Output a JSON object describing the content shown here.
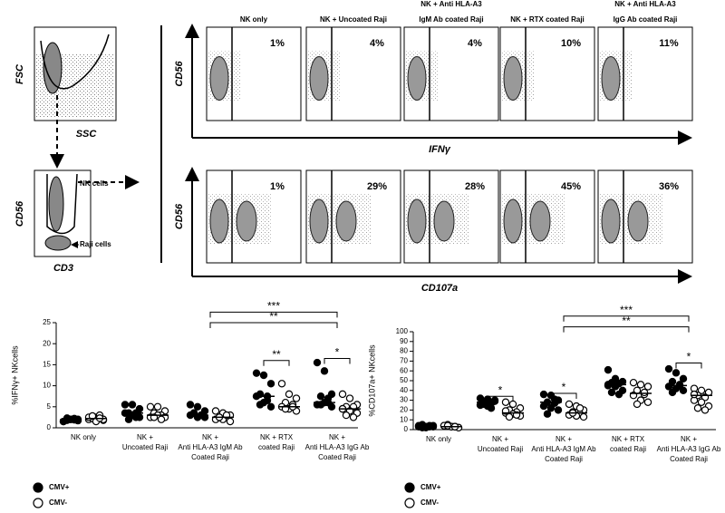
{
  "gating": {
    "top_y": "FSC",
    "top_x": "SSC",
    "bottom_y": "CD56",
    "bottom_x": "CD3",
    "gate_nk": "NK cells",
    "gate_raji": "Raji cells"
  },
  "flow_rows": [
    {
      "y_label": "CD56",
      "x_label": "IFNγ",
      "panels": [
        {
          "title": [
            "NK only"
          ],
          "percent": "1%"
        },
        {
          "title": [
            "NK + Uncoated Raji"
          ],
          "percent": "4%"
        },
        {
          "title": [
            "NK + Anti HLA-A3",
            "IgM Ab coated Raji"
          ],
          "percent": "4%"
        },
        {
          "title": [
            "NK + RTX coated Raji"
          ],
          "percent": "10%"
        },
        {
          "title": [
            "NK + Anti HLA-A3",
            "IgG Ab coated Raji"
          ],
          "percent": "11%"
        }
      ]
    },
    {
      "y_label": "CD56",
      "x_label": "CD107a",
      "panels": [
        {
          "percent": "1%"
        },
        {
          "percent": "29%"
        },
        {
          "percent": "28%"
        },
        {
          "percent": "45%"
        },
        {
          "percent": "36%"
        }
      ]
    }
  ],
  "chart_data": [
    {
      "type": "dot",
      "y_label": "%IFNγ+ NKcells",
      "ylim": [
        0,
        25
      ],
      "yticks": [
        0,
        5,
        10,
        15,
        20,
        25
      ],
      "categories": [
        [
          "NK only"
        ],
        [
          "NK +",
          "Uncoated Raji"
        ],
        [
          "NK +",
          "Anti HLA-A3 IgM Ab",
          "Coated Raji"
        ],
        [
          "NK + RTX",
          "coated Raji"
        ],
        [
          "NK +",
          "Anti HLA-A3 IgG Ab",
          "Coated Raji"
        ]
      ],
      "series": [
        {
          "name": "CMV+",
          "color": "#000000",
          "marker": "filled",
          "values": [
            [
              1.5,
              2,
              2,
              1.8,
              2.2,
              1.5,
              2,
              1.7,
              2.3,
              1.9
            ],
            [
              5.5,
              5.5,
              4.5,
              3.5,
              3.5,
              3.5,
              3,
              2.5,
              2,
              2.5
            ],
            [
              5.5,
              5,
              4,
              3.5,
              3,
              3,
              2.5,
              2.5,
              3.5,
              3
            ],
            [
              13,
              12.5,
              10.5,
              8,
              7.5,
              7.5,
              6,
              5,
              5.5,
              6.5
            ],
            [
              15.5,
              13.5,
              8,
              7.5,
              6,
              5.5,
              6,
              5,
              5.5,
              7
            ]
          ],
          "medians": [
            1.9,
            3.5,
            3,
            7.5,
            6
          ]
        },
        {
          "name": "CMV-",
          "color": "#000000",
          "marker": "open",
          "values": [
            [
              2,
              2.5,
              1.8,
              2.2,
              3,
              2.5,
              1.5,
              2,
              2.8,
              2.3
            ],
            [
              5,
              5,
              4,
              3.5,
              3,
              2.5,
              3,
              2.5,
              2.5,
              2
            ],
            [
              4,
              3.5,
              3,
              2.5,
              2.5,
              2,
              2,
              1.5,
              2.5,
              3
            ],
            [
              10.5,
              8,
              7,
              6,
              5.5,
              5,
              4.5,
              4,
              4.5,
              5
            ],
            [
              8,
              7,
              5.5,
              5,
              5,
              4.5,
              4,
              3.5,
              3,
              2.5,
              4.5
            ]
          ],
          "medians": [
            2.2,
            3,
            2.5,
            5,
            4.5
          ]
        }
      ],
      "brackets": [
        {
          "label": "***",
          "categories": [
            2,
            4
          ],
          "y": 27.5
        },
        {
          "label": "**",
          "categories": [
            2,
            4
          ],
          "y": 25
        },
        {
          "label": "**",
          "categories": [
            3
          ],
          "y": 16
        },
        {
          "label": "*",
          "categories": [
            4
          ],
          "y": 16.5
        }
      ]
    },
    {
      "type": "dot",
      "y_label": "%CD107a+ NKcells",
      "ylim": [
        0,
        100
      ],
      "yticks": [
        0,
        10,
        20,
        30,
        40,
        50,
        60,
        70,
        80,
        90,
        100
      ],
      "categories": [
        [
          "NK only"
        ],
        [
          "NK +",
          "Uncoated Raji"
        ],
        [
          "NK +",
          "Anti HLA-A3 IgM Ab",
          "Coated Raji"
        ],
        [
          "NK + RTX",
          "coated Raji"
        ],
        [
          "NK +",
          "Anti HLA-A3 IgG Ab",
          "Coated Raji"
        ]
      ],
      "series": [
        {
          "name": "CMV+",
          "color": "#000000",
          "marker": "filled",
          "values": [
            [
              3,
              3,
              4,
              2,
              3,
              4,
              2,
              3,
              5,
              4
            ],
            [
              32,
              31,
              29,
              28,
              27,
              25,
              24,
              30,
              26,
              22
            ],
            [
              36,
              35,
              30,
              28,
              27,
              24,
              22,
              20,
              16,
              31
            ],
            [
              61,
              52,
              49,
              48,
              47,
              46,
              44,
              40,
              38,
              36,
              45
            ],
            [
              62,
              58,
              52,
              49,
              45,
              44,
              42,
              40,
              38,
              46
            ]
          ],
          "medians": [
            3,
            28,
            28,
            46,
            45
          ]
        },
        {
          "name": "CMV-",
          "color": "#000000",
          "marker": "open",
          "values": [
            [
              4,
              3,
              2,
              5,
              3,
              4,
              3,
              2,
              4,
              3
            ],
            [
              28,
              26,
              22,
              20,
              18,
              17,
              16,
              14,
              13,
              15,
              19
            ],
            [
              26,
              24,
              20,
              18,
              16,
              15,
              14,
              13,
              17,
              22
            ],
            [
              48,
              46,
              44,
              40,
              36,
              35,
              30,
              28,
              26,
              38
            ],
            [
              42,
              40,
              38,
              35,
              33,
              30,
              28,
              24,
              22,
              20,
              36
            ]
          ],
          "medians": [
            3,
            17,
            17,
            37,
            35
          ]
        }
      ],
      "brackets": [
        {
          "label": "***",
          "categories": [
            2,
            4
          ],
          "y": 116
        },
        {
          "label": "**",
          "categories": [
            2,
            4
          ],
          "y": 105
        },
        {
          "label": "*",
          "categories": [
            1
          ],
          "y": 34
        },
        {
          "label": "*",
          "categories": [
            2
          ],
          "y": 37
        },
        {
          "label": "*",
          "categories": [
            4
          ],
          "y": 68
        }
      ]
    }
  ]
}
